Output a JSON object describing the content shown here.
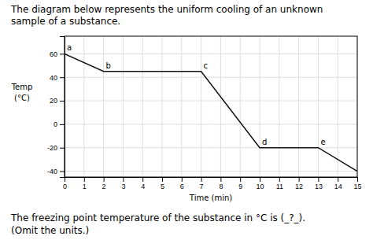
{
  "chart_data": {
    "type": "line",
    "title": [
      "The diagram below represents the uniform cooling of an unknown",
      "sample of a substance."
    ],
    "xlabel": "Time (min)",
    "ylabel": [
      "Temp",
      "(°C)"
    ],
    "x": [
      0,
      2,
      7,
      10,
      13,
      15
    ],
    "values": [
      60,
      45,
      45,
      -20,
      -20,
      -40
    ],
    "annotations": [
      "a",
      "b",
      "c",
      "d",
      "e"
    ],
    "caption": [
      "The freezing point temperature of the substance in °C is (_?_).",
      "(Omit the units.)"
    ],
    "xlim": [
      0,
      15
    ],
    "ylim": [
      -45,
      75
    ],
    "xticks": [
      0,
      1,
      2,
      3,
      4,
      5,
      6,
      7,
      8,
      9,
      10,
      11,
      12,
      13,
      14,
      15
    ],
    "yticks": [
      -40,
      -20,
      0,
      20,
      40,
      60
    ],
    "color": "#111111",
    "grid": true
  }
}
